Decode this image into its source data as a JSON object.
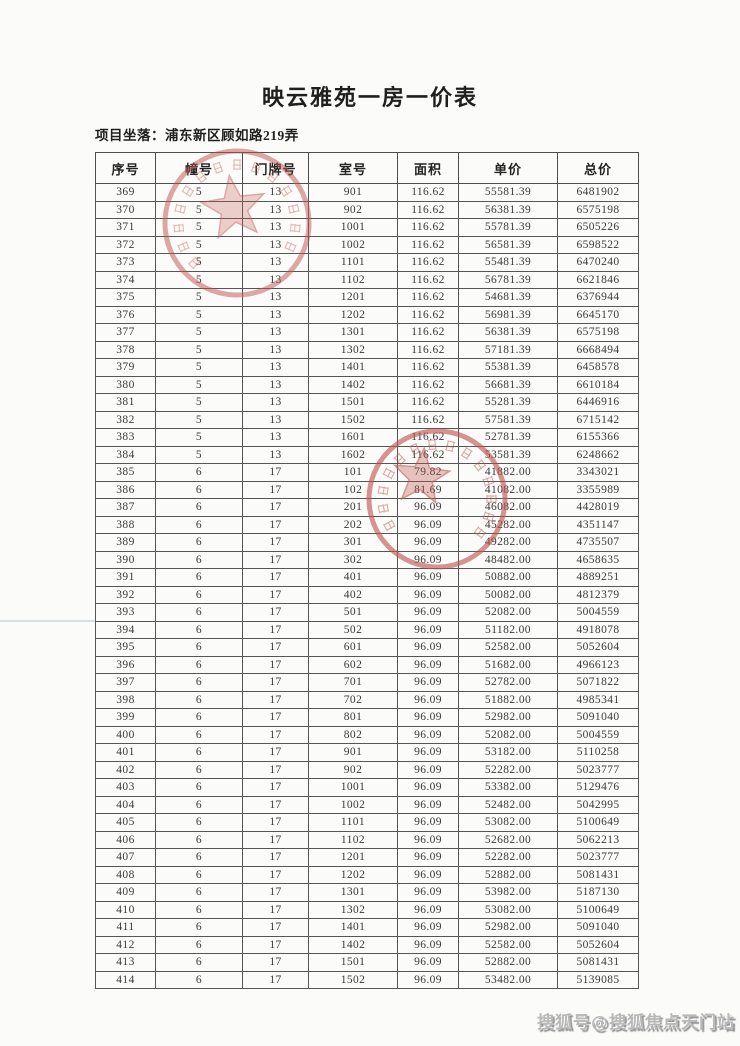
{
  "page": {
    "title": "映云雅苑一房一价表",
    "location_label": "项目坐落：浦东新区顾如路219弄",
    "watermark": "搜狐号@搜狐焦点天门站"
  },
  "colors": {
    "seal_red": "#c0534d",
    "watermark_gray": "#b9b9b9",
    "table_border": "#565656"
  },
  "table": {
    "headers": [
      "序号",
      "幢号",
      "门牌号",
      "室号",
      "面积",
      "单价",
      "总价"
    ],
    "rows": [
      [
        "369",
        "5",
        "13",
        "901",
        "116.62",
        "55581.39",
        "6481902"
      ],
      [
        "370",
        "5",
        "13",
        "902",
        "116.62",
        "56381.39",
        "6575198"
      ],
      [
        "371",
        "5",
        "13",
        "1001",
        "116.62",
        "55781.39",
        "6505226"
      ],
      [
        "372",
        "5",
        "13",
        "1002",
        "116.62",
        "56581.39",
        "6598522"
      ],
      [
        "373",
        "5",
        "13",
        "1101",
        "116.62",
        "55481.39",
        "6470240"
      ],
      [
        "374",
        "5",
        "13",
        "1102",
        "116.62",
        "56781.39",
        "6621846"
      ],
      [
        "375",
        "5",
        "13",
        "1201",
        "116.62",
        "54681.39",
        "6376944"
      ],
      [
        "376",
        "5",
        "13",
        "1202",
        "116.62",
        "56981.39",
        "6645170"
      ],
      [
        "377",
        "5",
        "13",
        "1301",
        "116.62",
        "56381.39",
        "6575198"
      ],
      [
        "378",
        "5",
        "13",
        "1302",
        "116.62",
        "57181.39",
        "6668494"
      ],
      [
        "379",
        "5",
        "13",
        "1401",
        "116.62",
        "55381.39",
        "6458578"
      ],
      [
        "380",
        "5",
        "13",
        "1402",
        "116.62",
        "56681.39",
        "6610184"
      ],
      [
        "381",
        "5",
        "13",
        "1501",
        "116.62",
        "55281.39",
        "6446916"
      ],
      [
        "382",
        "5",
        "13",
        "1502",
        "116.62",
        "57581.39",
        "6715142"
      ],
      [
        "383",
        "5",
        "13",
        "1601",
        "116.62",
        "52781.39",
        "6155366"
      ],
      [
        "384",
        "5",
        "13",
        "1602",
        "116.62",
        "53581.39",
        "6248662"
      ],
      [
        "385",
        "6",
        "17",
        "101",
        "79.82",
        "41882.00",
        "3343021"
      ],
      [
        "386",
        "6",
        "17",
        "102",
        "81.69",
        "41082.00",
        "3355989"
      ],
      [
        "387",
        "6",
        "17",
        "201",
        "96.09",
        "46082.00",
        "4428019"
      ],
      [
        "388",
        "6",
        "17",
        "202",
        "96.09",
        "45282.00",
        "4351147"
      ],
      [
        "389",
        "6",
        "17",
        "301",
        "96.09",
        "49282.00",
        "4735507"
      ],
      [
        "390",
        "6",
        "17",
        "302",
        "96.09",
        "48482.00",
        "4658635"
      ],
      [
        "391",
        "6",
        "17",
        "401",
        "96.09",
        "50882.00",
        "4889251"
      ],
      [
        "392",
        "6",
        "17",
        "402",
        "96.09",
        "50082.00",
        "4812379"
      ],
      [
        "393",
        "6",
        "17",
        "501",
        "96.09",
        "52082.00",
        "5004559"
      ],
      [
        "394",
        "6",
        "17",
        "502",
        "96.09",
        "51182.00",
        "4918078"
      ],
      [
        "395",
        "6",
        "17",
        "601",
        "96.09",
        "52582.00",
        "5052604"
      ],
      [
        "396",
        "6",
        "17",
        "602",
        "96.09",
        "51682.00",
        "4966123"
      ],
      [
        "397",
        "6",
        "17",
        "701",
        "96.09",
        "52782.00",
        "5071822"
      ],
      [
        "398",
        "6",
        "17",
        "702",
        "96.09",
        "51882.00",
        "4985341"
      ],
      [
        "399",
        "6",
        "17",
        "801",
        "96.09",
        "52982.00",
        "5091040"
      ],
      [
        "400",
        "6",
        "17",
        "802",
        "96.09",
        "52082.00",
        "5004559"
      ],
      [
        "401",
        "6",
        "17",
        "901",
        "96.09",
        "53182.00",
        "5110258"
      ],
      [
        "402",
        "6",
        "17",
        "902",
        "96.09",
        "52282.00",
        "5023777"
      ],
      [
        "403",
        "6",
        "17",
        "1001",
        "96.09",
        "53382.00",
        "5129476"
      ],
      [
        "404",
        "6",
        "17",
        "1002",
        "96.09",
        "52482.00",
        "5042995"
      ],
      [
        "405",
        "6",
        "17",
        "1101",
        "96.09",
        "53082.00",
        "5100649"
      ],
      [
        "406",
        "6",
        "17",
        "1102",
        "96.09",
        "52682.00",
        "5062213"
      ],
      [
        "407",
        "6",
        "17",
        "1201",
        "96.09",
        "52282.00",
        "5023777"
      ],
      [
        "408",
        "6",
        "17",
        "1202",
        "96.09",
        "52882.00",
        "5081431"
      ],
      [
        "409",
        "6",
        "17",
        "1301",
        "96.09",
        "53982.00",
        "5187130"
      ],
      [
        "410",
        "6",
        "17",
        "1302",
        "96.09",
        "53082.00",
        "5100649"
      ],
      [
        "411",
        "6",
        "17",
        "1401",
        "96.09",
        "52982.00",
        "5091040"
      ],
      [
        "412",
        "6",
        "17",
        "1402",
        "96.09",
        "52582.00",
        "5052604"
      ],
      [
        "413",
        "6",
        "17",
        "1501",
        "96.09",
        "52882.00",
        "5081431"
      ],
      [
        "414",
        "6",
        "17",
        "1502",
        "96.09",
        "53482.00",
        "5139085"
      ]
    ]
  }
}
